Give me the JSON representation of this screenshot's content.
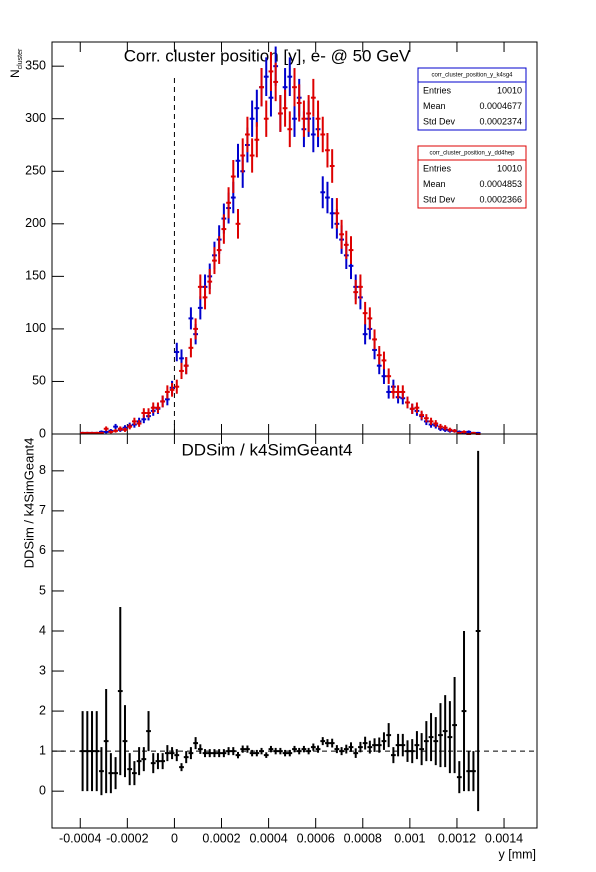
{
  "chart_data": [
    {
      "type": "errorbar",
      "title": "Corr. cluster position [y],  e- @ 50 GeV",
      "ylabel": "N",
      "ylabel_sub": "cluster",
      "xlim": [
        -0.00052,
        0.00154
      ],
      "ylim": [
        0,
        373
      ],
      "xticks": [
        -0.0004,
        -0.0002,
        0,
        0.0002,
        0.0004,
        0.0006,
        0.0008,
        0.001,
        0.0012,
        0.0014
      ],
      "yticks": [
        0,
        50,
        100,
        150,
        200,
        250,
        300,
        350
      ],
      "vline": {
        "x": 0,
        "y_end": 340
      },
      "stats_labels": [
        "Entries",
        "Mean",
        "Std Dev"
      ],
      "x": [
        -0.00039,
        -0.00037,
        -0.00035,
        -0.00033,
        -0.00031,
        -0.00029,
        -0.00027,
        -0.00025,
        -0.00023,
        -0.00021,
        -0.00019,
        -0.00017,
        -0.00015,
        -0.00013,
        -0.00011,
        -9e-05,
        -7e-05,
        -5e-05,
        -3e-05,
        -1e-05,
        1e-05,
        3e-05,
        5e-05,
        7e-05,
        9e-05,
        0.00011,
        0.00013,
        0.00015,
        0.00017,
        0.00019,
        0.00021,
        0.00023,
        0.00025,
        0.00027,
        0.00029,
        0.00031,
        0.00033,
        0.00035,
        0.00037,
        0.00039,
        0.00041,
        0.00043,
        0.00045,
        0.00047,
        0.00049,
        0.00051,
        0.00053,
        0.00055,
        0.00057,
        0.00059,
        0.00061,
        0.00063,
        0.00065,
        0.00067,
        0.00069,
        0.00071,
        0.00073,
        0.00075,
        0.00077,
        0.00079,
        0.00081,
        0.00083,
        0.00085,
        0.00087,
        0.00089,
        0.00091,
        0.00093,
        0.00095,
        0.00097,
        0.00099,
        0.00101,
        0.00103,
        0.00105,
        0.00107,
        0.00109,
        0.00111,
        0.00113,
        0.00115,
        0.00117,
        0.00119,
        0.00121,
        0.00123,
        0.00125,
        0.00127,
        0.00129
      ],
      "series": [
        {
          "name": "corr_cluster_position_y_k4sg4",
          "color": "#0000cc",
          "entries": 10010,
          "mean": 0.0004677,
          "std_dev": 0.0002374,
          "values": [
            1,
            1,
            1,
            1,
            2,
            2,
            3,
            7,
            4,
            6,
            8,
            9,
            12,
            14,
            17,
            22,
            24,
            31,
            33,
            44,
            78,
            72,
            65,
            110,
            95,
            120,
            140,
            150,
            170,
            185,
            205,
            215,
            225,
            260,
            250,
            275,
            300,
            310,
            330,
            340,
            320,
            350,
            305,
            330,
            340,
            300,
            320,
            290,
            300,
            285,
            290,
            230,
            225,
            210,
            200,
            185,
            170,
            160,
            140,
            130,
            95,
            100,
            80,
            65,
            55,
            40,
            45,
            35,
            34,
            30,
            24,
            22,
            17,
            12,
            9,
            8,
            5,
            4,
            3,
            3,
            2,
            1,
            2,
            1,
            1
          ],
          "errors": [
            1,
            1,
            1,
            1,
            1.4,
            1.4,
            1.7,
            2.6,
            2,
            2.4,
            2.8,
            3,
            3.5,
            3.7,
            4.1,
            4.7,
            4.9,
            5.6,
            5.7,
            6.6,
            8.8,
            8.5,
            8.1,
            10.5,
            9.7,
            11,
            11.8,
            12.2,
            13,
            13.6,
            14.3,
            14.7,
            15,
            16.1,
            15.8,
            16.6,
            17.3,
            17.6,
            18.2,
            18.4,
            17.9,
            18.7,
            17.5,
            18.2,
            18.4,
            17.3,
            17.9,
            17,
            17.3,
            16.9,
            17,
            15.2,
            15,
            14.5,
            14.1,
            13.6,
            13,
            12.6,
            11.8,
            11.4,
            9.7,
            10,
            8.9,
            8.1,
            7.4,
            6.3,
            6.7,
            5.9,
            5.8,
            5.5,
            4.9,
            4.7,
            4.1,
            3.5,
            3,
            2.8,
            2.2,
            2,
            1.7,
            1.7,
            1.4,
            1,
            1.4,
            1,
            1
          ]
        },
        {
          "name": "corr_cluster_position_y_dd4hep",
          "color": "#dd0000",
          "entries": 10010,
          "mean": 0.0004853,
          "std_dev": 0.0002366,
          "values": [
            1,
            1,
            1,
            1,
            1,
            5,
            2,
            3,
            5,
            4,
            7,
            12,
            10,
            20,
            20,
            25,
            25,
            31,
            40,
            42,
            45,
            60,
            65,
            82,
            100,
            140,
            130,
            145,
            165,
            175,
            195,
            220,
            245,
            200,
            265,
            285,
            265,
            280,
            330,
            300,
            345,
            335,
            305,
            310,
            290,
            330,
            315,
            300,
            305,
            320,
            300,
            285,
            270,
            255,
            210,
            190,
            180,
            175,
            135,
            140,
            115,
            110,
            90,
            75,
            70,
            55,
            40,
            40,
            40,
            30,
            24,
            25,
            18,
            15,
            12,
            10,
            7,
            6,
            4,
            3,
            1,
            2,
            0,
            1,
            0
          ],
          "errors": [
            1,
            1,
            1,
            1,
            1,
            2.2,
            1.4,
            1.7,
            2.2,
            2,
            2.6,
            3.5,
            3.2,
            4.5,
            4.5,
            5,
            5,
            5.6,
            6.3,
            6.5,
            6.7,
            7.7,
            8.1,
            9.1,
            10,
            11.8,
            11.4,
            12,
            12.8,
            13.2,
            14,
            14.8,
            15.7,
            14.1,
            16.3,
            16.9,
            16.3,
            16.7,
            18.2,
            17.3,
            18.6,
            18.3,
            17.5,
            17.6,
            17,
            18.2,
            17.7,
            17.3,
            17.5,
            17.9,
            17.3,
            16.9,
            16.4,
            16,
            14.5,
            13.8,
            13.4,
            13.2,
            11.6,
            11.8,
            10.7,
            10.5,
            9.5,
            8.7,
            8.4,
            7.4,
            6.3,
            6.3,
            6.3,
            5.5,
            4.9,
            5,
            4.2,
            3.9,
            3.5,
            3.2,
            2.6,
            2.4,
            2,
            1.7,
            1,
            1.4,
            0,
            1,
            0
          ]
        }
      ]
    },
    {
      "type": "errorbar",
      "title": "DDSim / k4SimGeant4",
      "ylabel": "DDSim / k4SimGeant4",
      "xlabel": "y [mm]",
      "xlim": [
        -0.00052,
        0.00154
      ],
      "ylim": [
        -0.92,
        8.92
      ],
      "xticks": [
        -0.0004,
        -0.0002,
        0,
        0.0002,
        0.0004,
        0.0006,
        0.0008,
        0.001,
        0.0012,
        0.0014
      ],
      "yticks": [
        0,
        1,
        2,
        3,
        4,
        5,
        6,
        7,
        8
      ],
      "hline": 1,
      "x": [
        -0.00039,
        -0.00037,
        -0.00035,
        -0.00033,
        -0.00031,
        -0.00029,
        -0.00027,
        -0.00025,
        -0.00023,
        -0.00021,
        -0.00019,
        -0.00017,
        -0.00015,
        -0.00013,
        -0.00011,
        -9e-05,
        -7e-05,
        -5e-05,
        -3e-05,
        -1e-05,
        1e-05,
        3e-05,
        5e-05,
        7e-05,
        9e-05,
        0.00011,
        0.00013,
        0.00015,
        0.00017,
        0.00019,
        0.00021,
        0.00023,
        0.00025,
        0.00027,
        0.00029,
        0.00031,
        0.00033,
        0.00035,
        0.00037,
        0.00039,
        0.00041,
        0.00043,
        0.00045,
        0.00047,
        0.00049,
        0.00051,
        0.00053,
        0.00055,
        0.00057,
        0.00059,
        0.00061,
        0.00063,
        0.00065,
        0.00067,
        0.00069,
        0.00071,
        0.00073,
        0.00075,
        0.00077,
        0.00079,
        0.00081,
        0.00083,
        0.00085,
        0.00087,
        0.00089,
        0.00091,
        0.00093,
        0.00095,
        0.00097,
        0.00099,
        0.00101,
        0.00103,
        0.00105,
        0.00107,
        0.00109,
        0.00111,
        0.00113,
        0.00115,
        0.00117,
        0.00119,
        0.00121,
        0.00123,
        0.00125,
        0.00127,
        0.00129
      ],
      "color": "#000000",
      "values": [
        1,
        1,
        1,
        1,
        0.5,
        1.25,
        0.45,
        0.45,
        2.5,
        1.25,
        0.55,
        0.45,
        0.75,
        0.8,
        1.5,
        0.7,
        0.75,
        0.75,
        0.95,
        0.95,
        0.9,
        0.6,
        0.85,
        0.95,
        1.2,
        1.05,
        0.95,
        0.95,
        0.95,
        0.95,
        0.95,
        1,
        1,
        0.9,
        1.05,
        1.05,
        0.95,
        0.95,
        1,
        0.9,
        1.05,
        1,
        1,
        0.95,
        0.95,
        1.05,
        1,
        1.05,
        1,
        1.1,
        1.05,
        1.25,
        1.2,
        1.2,
        1.05,
        1,
        1.05,
        1.1,
        0.95,
        1.1,
        1.2,
        1.1,
        1.15,
        1.15,
        1.25,
        1.4,
        0.9,
        1.15,
        1.15,
        1,
        1,
        1.15,
        1.05,
        1.25,
        1.35,
        1.25,
        1.4,
        1.5,
        1.35,
        1.65,
        0.35,
        2,
        0.5,
        0.5,
        4
      ],
      "errors": [
        1,
        1,
        1,
        1,
        0.6,
        1.3,
        0.5,
        0.4,
        2.1,
        0.9,
        0.4,
        0.3,
        0.35,
        0.3,
        0.5,
        0.25,
        0.2,
        0.2,
        0.2,
        0.15,
        0.15,
        0.1,
        0.15,
        0.15,
        0.15,
        0.12,
        0.1,
        0.1,
        0.1,
        0.1,
        0.1,
        0.1,
        0.1,
        0.08,
        0.09,
        0.09,
        0.08,
        0.08,
        0.08,
        0.07,
        0.08,
        0.08,
        0.08,
        0.08,
        0.08,
        0.08,
        0.08,
        0.08,
        0.08,
        0.09,
        0.09,
        0.1,
        0.1,
        0.11,
        0.1,
        0.1,
        0.11,
        0.12,
        0.12,
        0.13,
        0.16,
        0.16,
        0.17,
        0.19,
        0.22,
        0.3,
        0.2,
        0.28,
        0.28,
        0.27,
        0.3,
        0.35,
        0.4,
        0.5,
        0.6,
        0.6,
        0.8,
        0.9,
        0.9,
        1.2,
        0.4,
        2,
        0.5,
        0.5,
        4.5
      ]
    }
  ]
}
